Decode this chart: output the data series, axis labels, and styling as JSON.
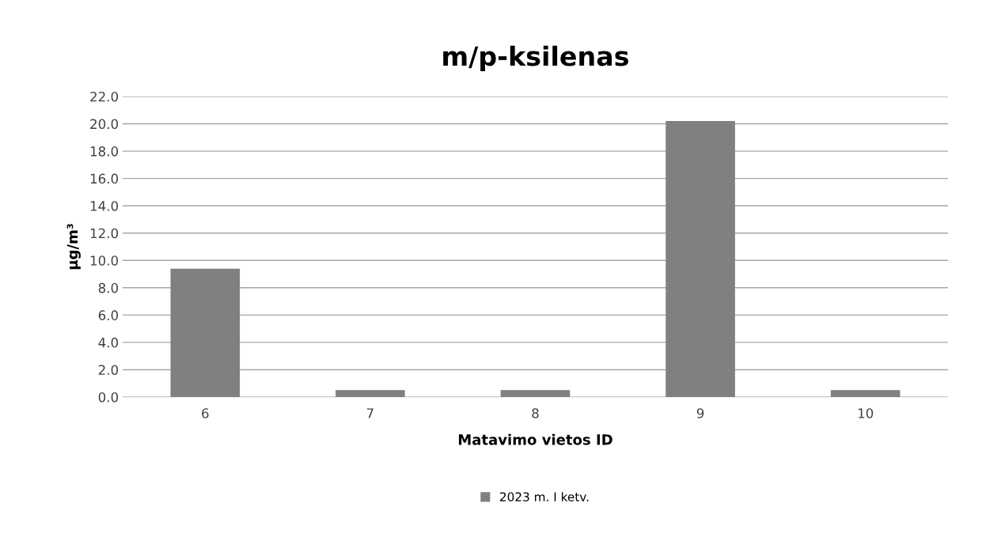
{
  "chart_data": {
    "type": "bar",
    "title": "m/p-ksilenas",
    "xlabel": "Matavimo vietos ID",
    "ylabel": "µg/m³",
    "categories": [
      "6",
      "7",
      "8",
      "9",
      "10"
    ],
    "series": [
      {
        "name": "2023 m. I ketv.",
        "color": "#808080",
        "values": [
          9.4,
          0.5,
          0.5,
          20.2,
          0.5
        ]
      }
    ],
    "ylim": [
      0,
      22
    ],
    "yticks": [
      {
        "value": 0,
        "label": "0.0"
      },
      {
        "value": 2,
        "label": "2.0"
      },
      {
        "value": 4,
        "label": "4.0"
      },
      {
        "value": 6,
        "label": "6.0"
      },
      {
        "value": 8,
        "label": "8.0"
      },
      {
        "value": 10,
        "label": "10.0"
      },
      {
        "value": 12,
        "label": "12.0"
      },
      {
        "value": 14,
        "label": "14.0"
      },
      {
        "value": 16,
        "label": "16.0"
      },
      {
        "value": 18,
        "label": "18.0"
      },
      {
        "value": 20,
        "label": "20.0"
      },
      {
        "value": 22,
        "label": "22.0"
      }
    ],
    "grid": "y",
    "legend": "bottom"
  }
}
